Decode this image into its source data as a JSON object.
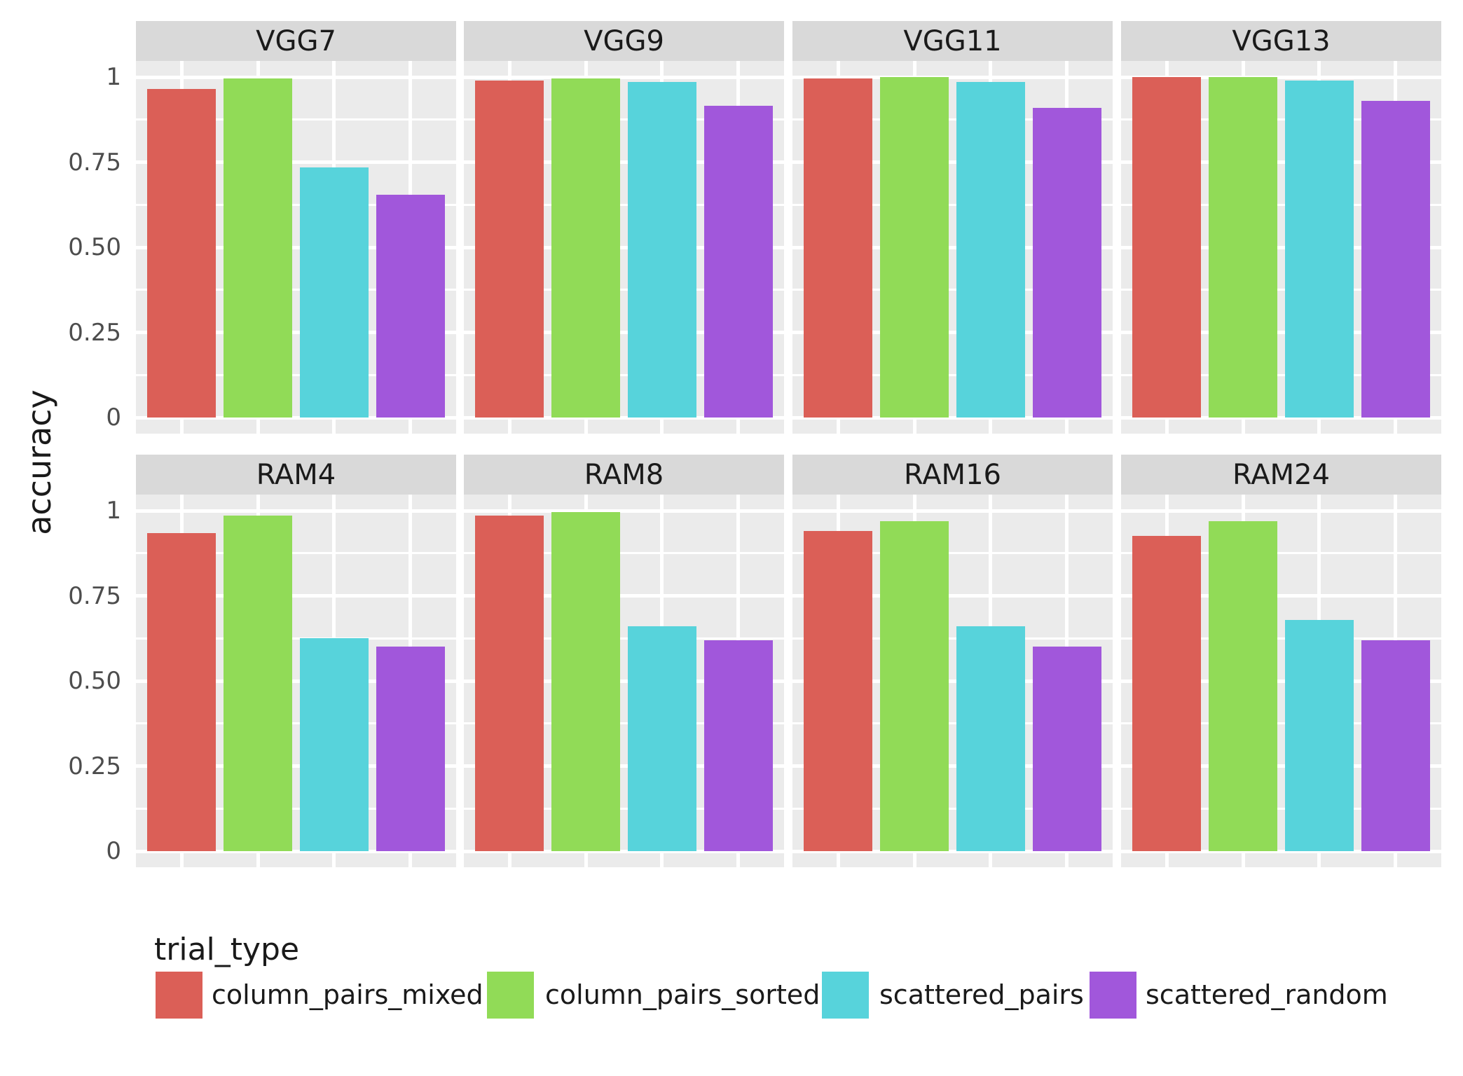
{
  "chart_data": {
    "type": "bar",
    "title": "",
    "xlabel": "",
    "ylabel": "accuracy",
    "ylim": [
      0,
      1
    ],
    "grid": "on",
    "facet_layout": {
      "rows": 2,
      "cols": 4
    },
    "yticks": {
      "values": [
        1,
        0.75,
        0.5,
        0.25,
        0
      ],
      "labels": [
        "1",
        "0.75",
        "0.50",
        "0.25",
        "0"
      ],
      "minor_values": [
        0.875,
        0.625,
        0.375,
        0.125
      ]
    },
    "series_names": [
      "column_pairs_mixed",
      "column_pairs_sorted",
      "scattered_pairs",
      "scattered_random"
    ],
    "colors": {
      "column_pairs_mixed": "#DB5F57",
      "column_pairs_sorted": "#91DB57",
      "scattered_pairs": "#57D3DB",
      "scattered_random": "#A157DB",
      "panel_background": "#EBEBEB",
      "strip_background": "#D9D9D9",
      "gridline": "#FFFFFF",
      "tick_text": "#4D4D4D",
      "text": "#1A1A1A"
    },
    "panels": [
      {
        "title": "VGG7",
        "values": [
          0.965,
          0.995,
          0.735,
          0.655
        ]
      },
      {
        "title": "VGG9",
        "values": [
          0.99,
          0.995,
          0.985,
          0.915
        ]
      },
      {
        "title": "VGG11",
        "values": [
          0.995,
          1.0,
          0.985,
          0.91
        ]
      },
      {
        "title": "VGG13",
        "values": [
          1.0,
          1.0,
          0.99,
          0.93
        ]
      },
      {
        "title": "RAM4",
        "values": [
          0.935,
          0.985,
          0.625,
          0.6
        ]
      },
      {
        "title": "RAM8",
        "values": [
          0.985,
          0.995,
          0.66,
          0.62
        ]
      },
      {
        "title": "RAM16",
        "values": [
          0.94,
          0.97,
          0.66,
          0.6
        ]
      },
      {
        "title": "RAM24",
        "values": [
          0.925,
          0.97,
          0.68,
          0.62
        ]
      }
    ],
    "legend": {
      "title": "trial_type",
      "position": "bottom",
      "entries": [
        {
          "label": "column_pairs_mixed",
          "color": "#DB5F57"
        },
        {
          "label": "column_pairs_sorted",
          "color": "#91DB57"
        },
        {
          "label": "scattered_pairs",
          "color": "#57D3DB"
        },
        {
          "label": "scattered_random",
          "color": "#A157DB"
        }
      ]
    }
  }
}
